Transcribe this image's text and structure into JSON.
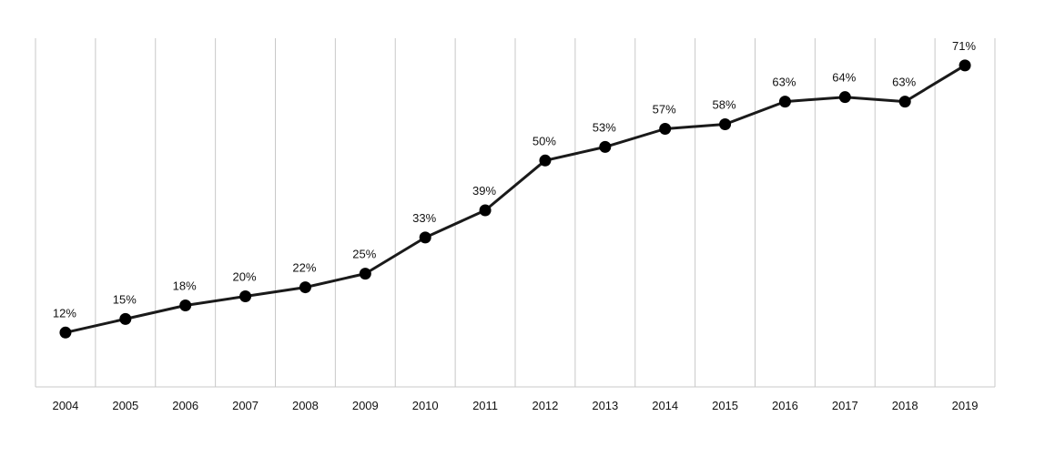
{
  "chart_data": {
    "type": "line",
    "title": "",
    "xlabel": "",
    "ylabel": "",
    "categories": [
      "2004",
      "2005",
      "2006",
      "2007",
      "2008",
      "2009",
      "2010",
      "2011",
      "2012",
      "2013",
      "2014",
      "2015",
      "2016",
      "2017",
      "2018",
      "2019"
    ],
    "values": [
      12,
      15,
      18,
      20,
      22,
      25,
      33,
      39,
      50,
      53,
      57,
      58,
      63,
      64,
      63,
      71
    ],
    "data_labels": [
      "12%",
      "15%",
      "18%",
      "20%",
      "22%",
      "25%",
      "33%",
      "39%",
      "50%",
      "53%",
      "57%",
      "58%",
      "63%",
      "64%",
      "63%",
      "71%"
    ],
    "ylim": [
      0,
      77
    ],
    "grid": "vertical",
    "legend": "none",
    "colors": {
      "line": "#1a1a1a",
      "marker": "#000000",
      "grid": "#c8c8c8",
      "text": "#111111"
    }
  }
}
